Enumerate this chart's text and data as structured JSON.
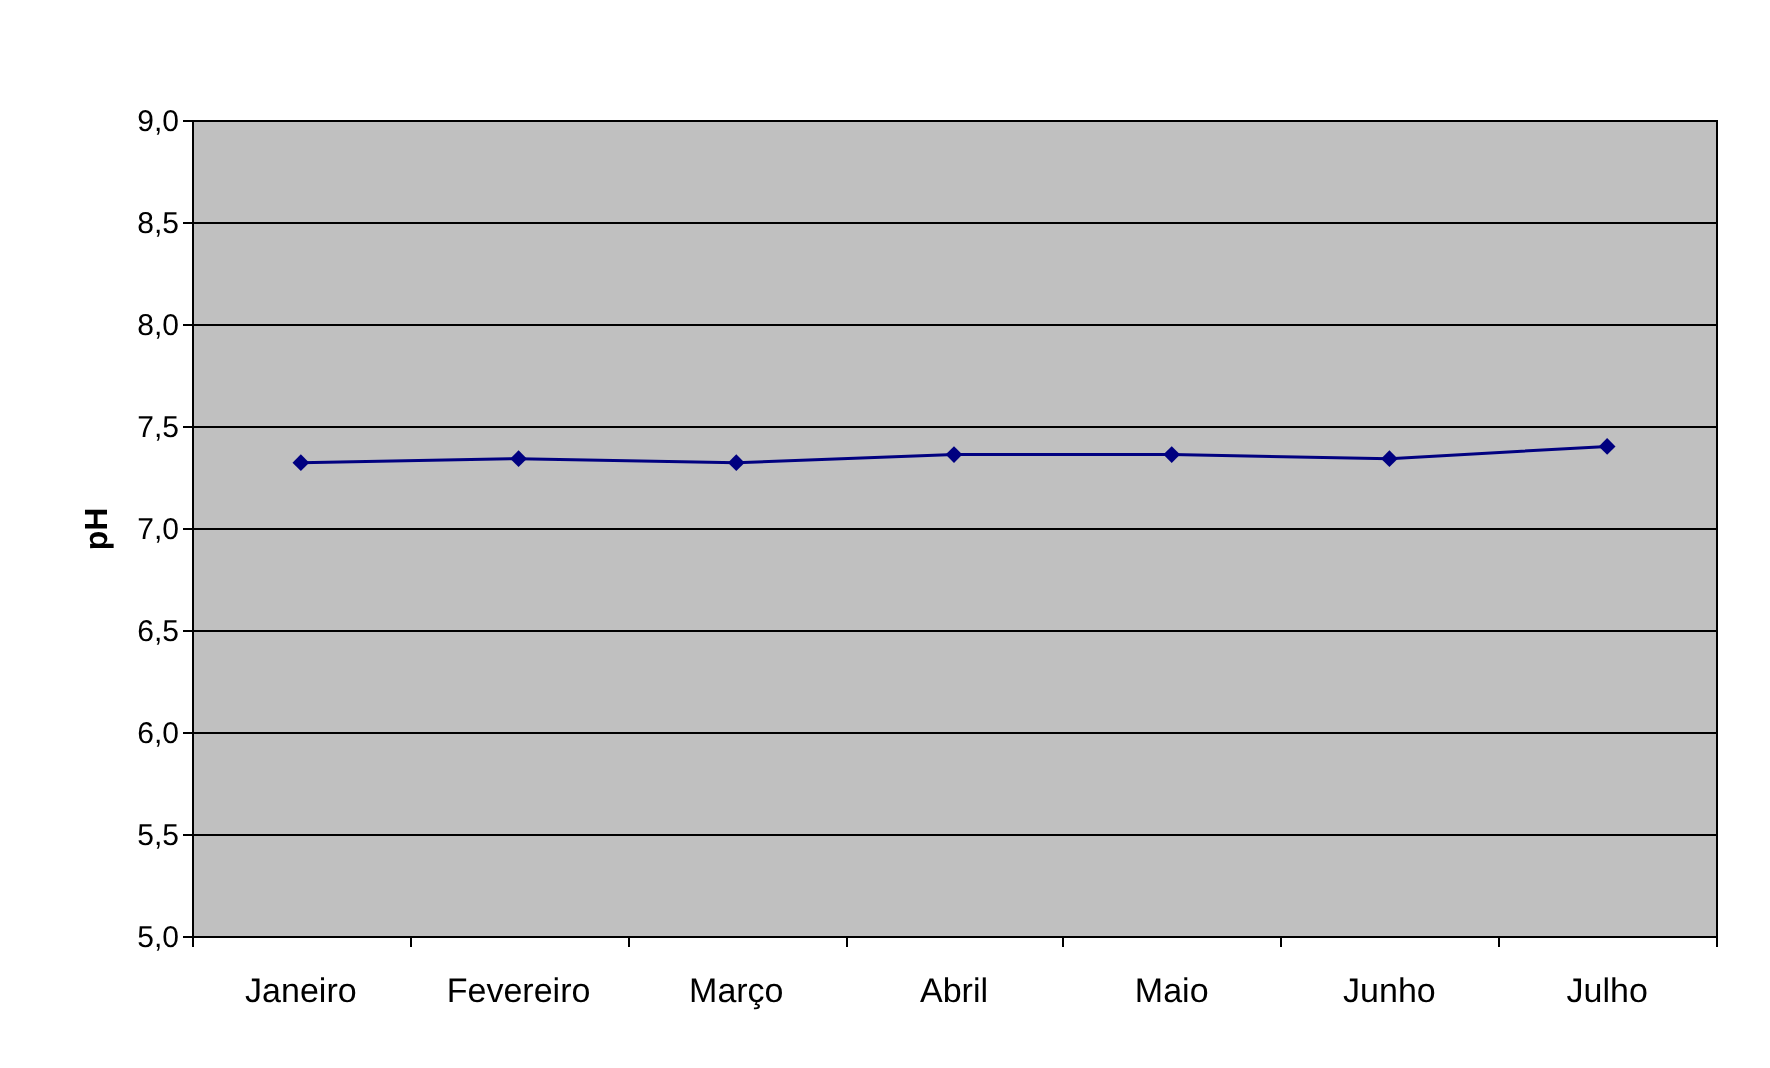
{
  "chart_data": {
    "type": "line",
    "ylabel": "pH",
    "categories": [
      "Janeiro",
      "Fevereiro",
      "Março",
      "Abril",
      "Maio",
      "Junho",
      "Julho"
    ],
    "series": [
      {
        "color": "#000080",
        "values": [
          7.32,
          7.34,
          7.32,
          7.36,
          7.36,
          7.34,
          7.4
        ]
      }
    ],
    "ylim": [
      5.0,
      9.0
    ],
    "yticks": [
      {
        "value": 5.0,
        "label": "5,0"
      },
      {
        "value": 5.5,
        "label": "5,5"
      },
      {
        "value": 6.0,
        "label": "6,0"
      },
      {
        "value": 6.5,
        "label": "6,5"
      },
      {
        "value": 7.0,
        "label": "7,0"
      },
      {
        "value": 7.5,
        "label": "7,5"
      },
      {
        "value": 8.0,
        "label": "8,0"
      },
      {
        "value": 8.5,
        "label": "8,5"
      },
      {
        "value": 9.0,
        "label": "9,0"
      }
    ],
    "grid": "y",
    "marker": "diamond",
    "line_style": "solid"
  }
}
